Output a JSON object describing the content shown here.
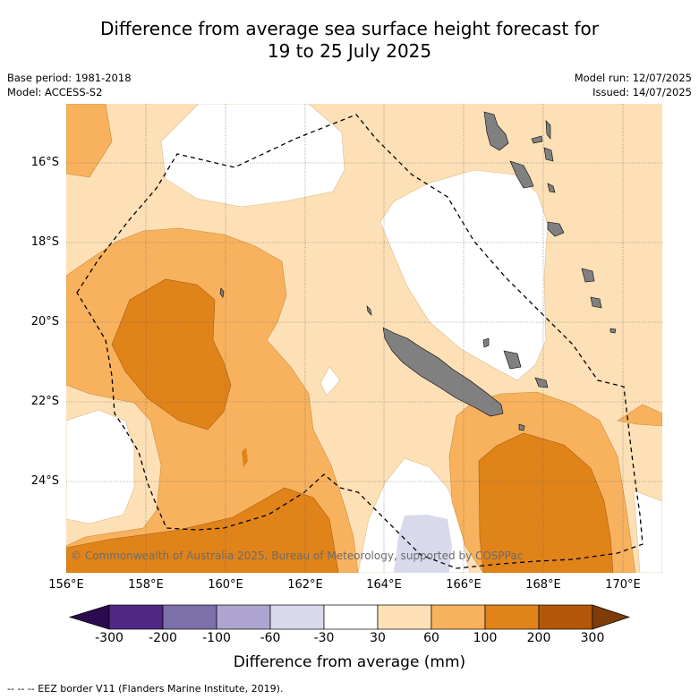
{
  "title_line1": "Difference from average sea surface height forecast for",
  "title_line2": "19 to 25 July 2025",
  "base_period": "Base period: 1981-2018",
  "model": "Model: ACCESS-S2",
  "model_run": "Model run: 12/07/2025",
  "issued": "Issued: 14/07/2025",
  "lat_labels": [
    "16°S",
    "18°S",
    "20°S",
    "22°S",
    "24°S"
  ],
  "lon_labels": [
    "156°E",
    "158°E",
    "160°E",
    "162°E",
    "164°E",
    "166°E",
    "168°E",
    "170°E"
  ],
  "colorbar": {
    "colors": [
      "#512783",
      "#7d6faa",
      "#ada5cf",
      "#d9d9ec",
      "#ffffff",
      "#fde0b6",
      "#f8b25e",
      "#e08319",
      "#b35709"
    ],
    "end_low": "#2d0a4f",
    "end_high": "#7f3b08",
    "tick_labels": [
      "-300",
      "-200",
      "-100",
      "-60",
      "-30",
      "30",
      "60",
      "100",
      "200",
      "300"
    ],
    "title": "Difference from average (mm)"
  },
  "copyright": "© Commonwealth of Australia 2025, Bureau of Meteorology, supported by COSPPac",
  "eez_legend": "--  --  -- EEZ border V11 (Flanders Marine Institute, 2019).",
  "land_color": "#808080"
}
